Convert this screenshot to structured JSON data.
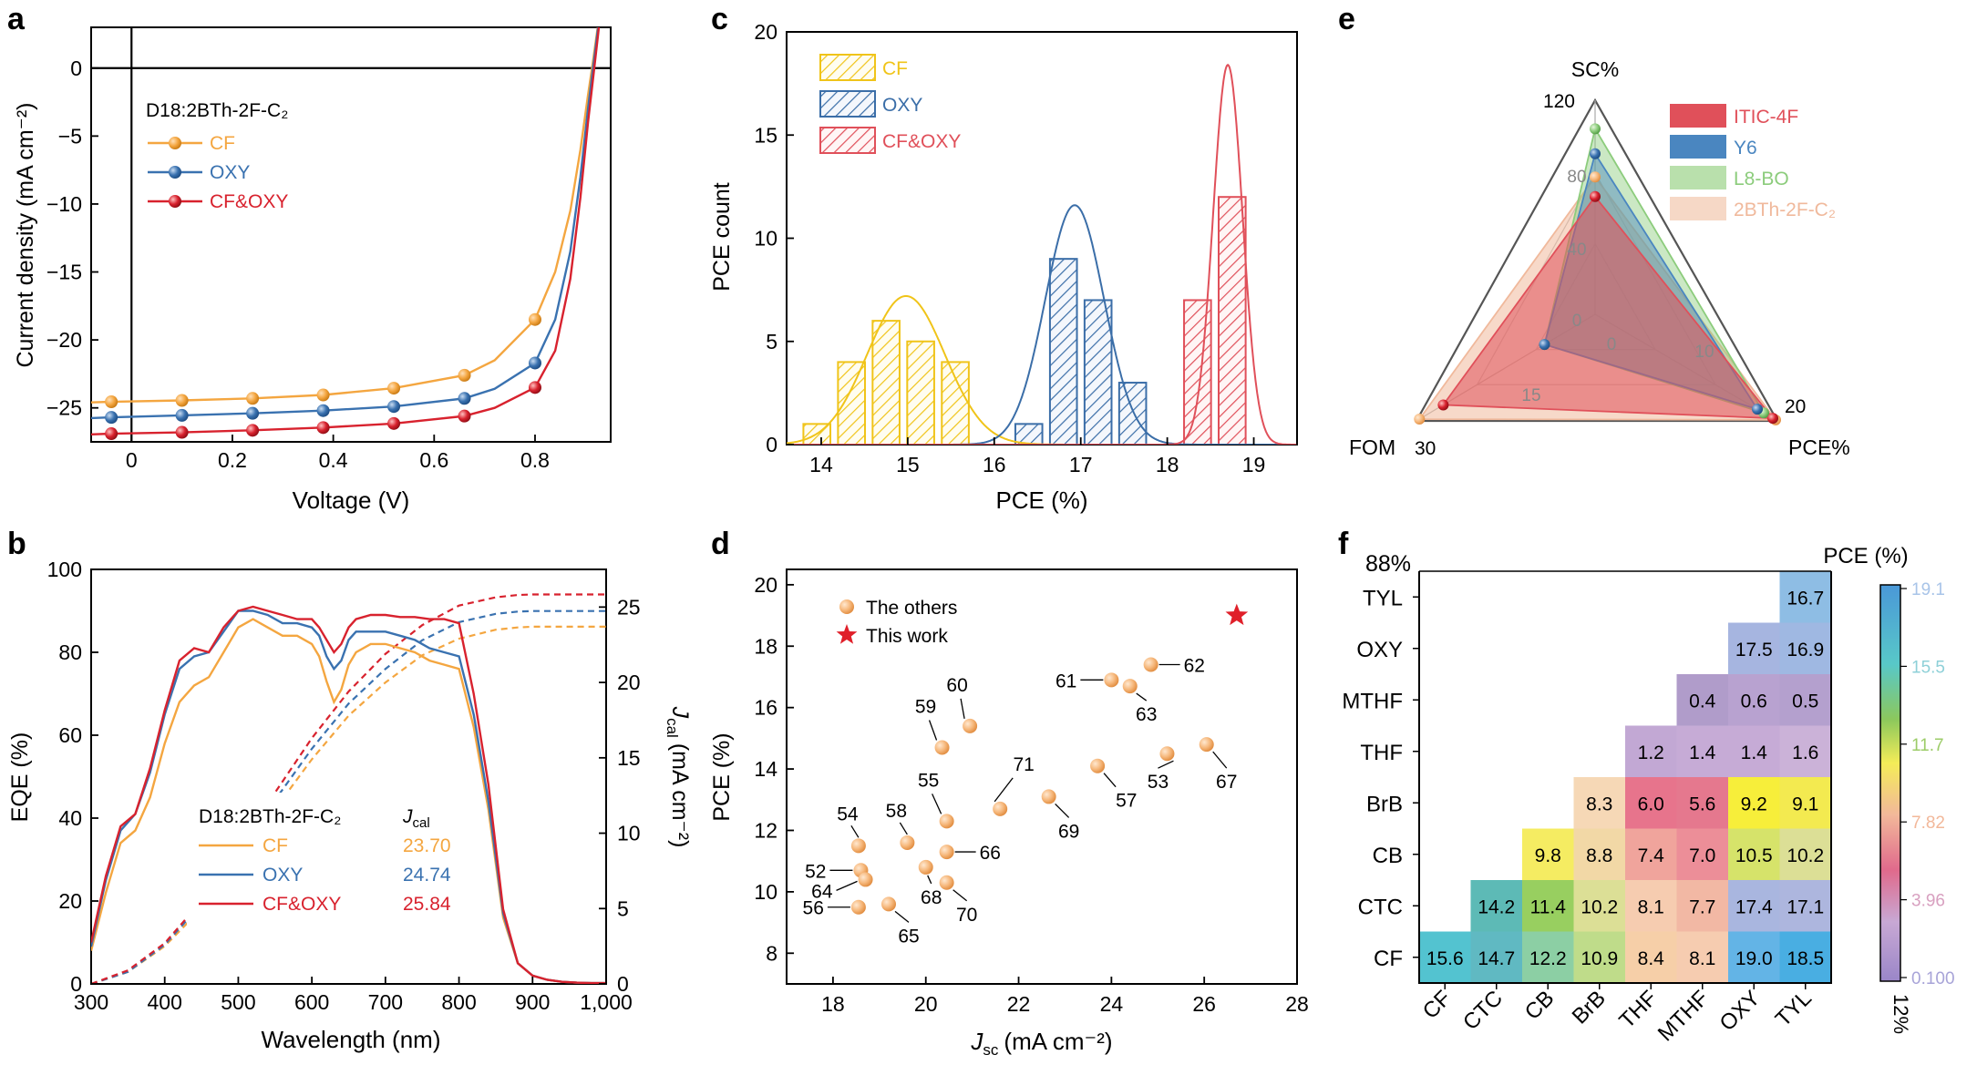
{
  "colors": {
    "cf": "#f4a640",
    "oxy": "#3a72b0",
    "cfoxy": "#d8222e",
    "hist_cf": "#f0c419",
    "hist_oxy": "#3b6ea8",
    "hist_cfoxy": "#e0505a",
    "others": "#f6b87c",
    "star": "#e0202a",
    "itic": "#e0505a",
    "y6": "#4a86c0",
    "l8bo": "#8ccc7c",
    "bth": "#f0b99c"
  },
  "panels": {
    "a": "a",
    "b": "b",
    "c": "c",
    "d": "d",
    "e": "e",
    "f": "f"
  },
  "chart_data": [
    {
      "panel": "a",
      "type": "line",
      "title": "D18:2BTh-2F-C₂",
      "xlabel": "Voltage (V)",
      "ylabel": "Current density (mA cm⁻²)",
      "xlim": [
        -0.08,
        0.95
      ],
      "ylim": [
        -27.5,
        3
      ],
      "xticks": [
        0,
        0.2,
        0.4,
        0.6,
        0.8
      ],
      "xtick_labels": [
        "0",
        "0.2",
        "0.4",
        "0.6",
        "0.8"
      ],
      "yticks": [
        0,
        -5,
        -10,
        -15,
        -20,
        -25
      ],
      "ytick_labels": [
        "0",
        "−5",
        "−10",
        "−15",
        "−20",
        "−25"
      ],
      "legend": "top-left",
      "series": [
        {
          "name": "CF",
          "color": "#f4a640",
          "x": [
            -0.08,
            -0.04,
            0.1,
            0.24,
            0.38,
            0.52,
            0.66,
            0.72,
            0.8,
            0.84,
            0.87,
            0.89,
            0.905,
            0.915,
            0.925,
            0.93
          ],
          "y": [
            -24.6,
            -24.55,
            -24.45,
            -24.3,
            -24.05,
            -23.55,
            -22.6,
            -21.5,
            -18.5,
            -15,
            -10.5,
            -6,
            -2,
            0.5,
            3.2,
            4.2
          ],
          "markers_x": [
            -0.04,
            0.1,
            0.24,
            0.38,
            0.52,
            0.66,
            0.8
          ]
        },
        {
          "name": "OXY",
          "color": "#3a72b0",
          "x": [
            -0.08,
            -0.04,
            0.1,
            0.24,
            0.38,
            0.52,
            0.66,
            0.72,
            0.8,
            0.84,
            0.87,
            0.89,
            0.905,
            0.915,
            0.925,
            0.93
          ],
          "y": [
            -25.75,
            -25.7,
            -25.55,
            -25.4,
            -25.2,
            -24.9,
            -24.3,
            -23.6,
            -21.7,
            -18.5,
            -13.5,
            -8,
            -3,
            0,
            3,
            4.2
          ],
          "markers_x": [
            -0.04,
            0.1,
            0.24,
            0.38,
            0.52,
            0.66,
            0.8
          ]
        },
        {
          "name": "CF&OXY",
          "color": "#d8222e",
          "x": [
            -0.08,
            -0.04,
            0.1,
            0.24,
            0.38,
            0.52,
            0.66,
            0.72,
            0.8,
            0.84,
            0.87,
            0.89,
            0.905,
            0.915,
            0.925,
            0.93
          ],
          "y": [
            -26.95,
            -26.9,
            -26.8,
            -26.65,
            -26.45,
            -26.15,
            -25.6,
            -25,
            -23.5,
            -20.8,
            -15.5,
            -9.5,
            -4,
            -0.8,
            2.5,
            4.2
          ],
          "markers_x": [
            -0.04,
            0.1,
            0.24,
            0.38,
            0.52,
            0.66,
            0.8
          ]
        }
      ]
    },
    {
      "panel": "b",
      "type": "line",
      "title": "D18:2BTh-2F-C₂",
      "xlabel": "Wavelength (nm)",
      "ylabel": "EQE (%)",
      "y2label": "J",
      "y2label_sub": "cal",
      "y2label_unit": "(mA cm⁻²)",
      "xlim": [
        300,
        1000
      ],
      "ylim": [
        0,
        100
      ],
      "y2lim": [
        0,
        27.5
      ],
      "xticks": [
        300,
        400,
        500,
        600,
        700,
        800,
        900,
        1000
      ],
      "xtick_labels": [
        "300",
        "400",
        "500",
        "600",
        "700",
        "800",
        "900",
        "1,000"
      ],
      "yticks": [
        0,
        20,
        40,
        60,
        80,
        100
      ],
      "y2ticks": [
        0,
        5,
        10,
        15,
        20,
        25
      ],
      "legend": "center-left",
      "legend_jcal_label": "J",
      "legend_jcal_sub": "cal",
      "series": [
        {
          "name": "CF",
          "color": "#f4a640",
          "jcal": "23.70",
          "x": [
            300,
            320,
            340,
            360,
            380,
            400,
            420,
            440,
            460,
            480,
            500,
            520,
            540,
            560,
            580,
            600,
            610,
            620,
            630,
            640,
            650,
            660,
            680,
            700,
            720,
            740,
            760,
            780,
            800,
            820,
            840,
            860,
            880,
            900,
            920,
            940,
            960,
            980,
            1000
          ],
          "y": [
            8,
            22,
            34,
            37,
            45,
            58,
            68,
            72,
            74,
            80,
            86,
            88,
            86,
            84,
            84,
            82,
            79,
            73,
            68,
            71,
            77,
            80,
            82,
            82,
            81,
            80,
            78,
            77,
            76,
            62,
            42,
            16,
            5,
            2,
            1,
            0.5,
            0.3,
            0.2,
            0.2
          ],
          "jcal_x": [
            300,
            350,
            400,
            450,
            500,
            550,
            600,
            650,
            700,
            750,
            800,
            850,
            880,
            900,
            950,
            1000
          ],
          "jcal_y": [
            0,
            0.8,
            2.5,
            5,
            8.3,
            11.6,
            14.9,
            17.8,
            20,
            21.8,
            22.9,
            23.5,
            23.65,
            23.7,
            23.7,
            23.7
          ]
        },
        {
          "name": "OXY",
          "color": "#3a72b0",
          "jcal": "24.74",
          "x": [
            300,
            320,
            340,
            360,
            380,
            400,
            420,
            440,
            460,
            480,
            500,
            520,
            540,
            560,
            580,
            600,
            610,
            620,
            630,
            640,
            650,
            660,
            680,
            700,
            720,
            740,
            760,
            780,
            800,
            820,
            840,
            860,
            880,
            900,
            920,
            940,
            960,
            980,
            1000
          ],
          "y": [
            9,
            25,
            37,
            41,
            51,
            65,
            76,
            79,
            80,
            85,
            90,
            90,
            89,
            87,
            87,
            86,
            84,
            79,
            76,
            78,
            83,
            85,
            85,
            85,
            84,
            83,
            81,
            80,
            79,
            65,
            44,
            17,
            5,
            2,
            1,
            0.5,
            0.3,
            0.2,
            0.2
          ],
          "jcal_x": [
            300,
            350,
            400,
            450,
            500,
            550,
            600,
            650,
            700,
            750,
            800,
            850,
            880,
            900,
            950,
            1000
          ],
          "jcal_y": [
            0,
            0.8,
            2.6,
            5.3,
            8.7,
            12.2,
            15.6,
            18.6,
            20.9,
            22.8,
            24,
            24.55,
            24.7,
            24.74,
            24.74,
            24.74
          ]
        },
        {
          "name": "CF&OXY",
          "color": "#d8222e",
          "jcal": "25.84",
          "x": [
            300,
            320,
            340,
            360,
            380,
            400,
            420,
            440,
            460,
            480,
            500,
            520,
            540,
            560,
            580,
            600,
            610,
            620,
            630,
            640,
            650,
            660,
            680,
            700,
            720,
            740,
            760,
            780,
            800,
            820,
            840,
            860,
            880,
            900,
            920,
            940,
            960,
            980,
            1000
          ],
          "y": [
            10,
            26,
            38,
            41,
            52,
            66,
            78,
            81,
            80,
            86,
            90,
            91,
            90,
            89,
            88,
            88,
            86,
            83,
            80,
            82,
            86,
            88,
            89,
            89,
            88.5,
            88.5,
            88,
            88,
            87,
            70,
            48,
            18,
            5,
            2,
            1,
            0.5,
            0.3,
            0.2,
            0.2
          ],
          "jcal_x": [
            300,
            350,
            400,
            450,
            500,
            550,
            600,
            650,
            700,
            750,
            800,
            850,
            880,
            900,
            950,
            1000
          ],
          "jcal_y": [
            0,
            0.9,
            2.7,
            5.5,
            9,
            12.7,
            16.3,
            19.4,
            21.9,
            23.8,
            25.1,
            25.65,
            25.8,
            25.84,
            25.84,
            25.84
          ]
        }
      ]
    },
    {
      "panel": "c",
      "type": "bar",
      "xlabel": "PCE (%)",
      "ylabel": "PCE count",
      "xlim": [
        13.6,
        19.5
      ],
      "ylim": [
        0,
        20
      ],
      "xticks": [
        14,
        15,
        16,
        17,
        18,
        19
      ],
      "yticks": [
        0,
        5,
        10,
        15,
        20
      ],
      "legend": "top-left",
      "series": [
        {
          "name": "CF",
          "color": "#f0c419",
          "bin_centers": [
            13.95,
            14.35,
            14.75,
            15.15,
            15.55
          ],
          "counts": [
            1,
            4,
            6,
            5,
            4
          ],
          "fit_mu": 14.98,
          "fit_sigma": 0.45,
          "fit_peak": 7.2
        },
        {
          "name": "OXY",
          "color": "#3b6ea8",
          "bin_centers": [
            16.4,
            16.8,
            17.2,
            17.6
          ],
          "counts": [
            1,
            9,
            7,
            3
          ],
          "fit_mu": 16.93,
          "fit_sigma": 0.34,
          "fit_peak": 11.6
        },
        {
          "name": "CF&OXY",
          "color": "#e0505a",
          "bin_centers": [
            18.35,
            18.75
          ],
          "counts": [
            7,
            12
          ],
          "fit_mu": 18.7,
          "fit_sigma": 0.17,
          "fit_peak": 18.4
        }
      ]
    },
    {
      "panel": "d",
      "type": "scatter",
      "xlabel": "J",
      "xlabel_sub": "sc",
      "xlabel_unit": "(mA cm⁻²)",
      "ylabel": "PCE (%)",
      "xlim": [
        17,
        28
      ],
      "ylim": [
        7,
        20.5
      ],
      "xticks": [
        18,
        20,
        22,
        24,
        26,
        28
      ],
      "yticks": [
        8,
        10,
        12,
        14,
        16,
        18,
        20
      ],
      "legend": "top-left",
      "legend_labels": {
        "others": "The others",
        "this": "This work"
      },
      "this_work": {
        "x": 26.7,
        "y": 19.0
      },
      "points": [
        {
          "label": "52",
          "x": 18.6,
          "y": 10.7
        },
        {
          "label": "53",
          "x": 25.2,
          "y": 14.5
        },
        {
          "label": "54",
          "x": 18.55,
          "y": 11.5
        },
        {
          "label": "55",
          "x": 20.45,
          "y": 12.3
        },
        {
          "label": "56",
          "x": 18.55,
          "y": 9.5
        },
        {
          "label": "57",
          "x": 23.7,
          "y": 14.1
        },
        {
          "label": "58",
          "x": 19.6,
          "y": 11.6
        },
        {
          "label": "59",
          "x": 20.35,
          "y": 14.7
        },
        {
          "label": "60",
          "x": 20.95,
          "y": 15.4
        },
        {
          "label": "61",
          "x": 24.0,
          "y": 16.9
        },
        {
          "label": "62",
          "x": 24.85,
          "y": 17.4
        },
        {
          "label": "63",
          "x": 24.4,
          "y": 16.7
        },
        {
          "label": "64",
          "x": 18.7,
          "y": 10.4
        },
        {
          "label": "65",
          "x": 19.2,
          "y": 9.6
        },
        {
          "label": "66",
          "x": 20.45,
          "y": 11.3
        },
        {
          "label": "67",
          "x": 26.05,
          "y": 14.8
        },
        {
          "label": "68",
          "x": 20.0,
          "y": 10.8
        },
        {
          "label": "69",
          "x": 22.65,
          "y": 13.1
        },
        {
          "label": "70",
          "x": 20.45,
          "y": 10.3
        },
        {
          "label": "71",
          "x": 21.6,
          "y": 12.7
        }
      ]
    },
    {
      "panel": "e",
      "type": "radar",
      "axes": [
        "SC%",
        "FOM",
        "PCE%"
      ],
      "axis_max_labels": [
        "120",
        "30",
        "20"
      ],
      "grid_labels": [
        "80",
        "40",
        "0",
        "0",
        "10",
        "15"
      ],
      "legend": "top-right",
      "series": [
        {
          "name": "ITIC-4F",
          "color": "#e0505a",
          "values": [
            66,
            25.5,
            19.5
          ]
        },
        {
          "name": "Y6",
          "color": "#4a86c0",
          "values": [
            90,
            8.5,
            17.8
          ]
        },
        {
          "name": "L8-BO",
          "color": "#8ccc7c",
          "values": [
            104,
            8.5,
            18.5
          ]
        },
        {
          "name": "2BTh-2F-C₂",
          "color": "#f0b99c",
          "values": [
            77,
            29.5,
            19.8
          ]
        }
      ]
    },
    {
      "panel": "f",
      "type": "heatmap",
      "corner_label": "88%",
      "colorbar_title": "PCE (%)",
      "colorbar_ticks": [
        "19.1",
        "15.5",
        "11.7",
        "7.82",
        "3.96",
        "0.100"
      ],
      "colorbar_bottom_label": "12%",
      "rows": [
        "TYL",
        "OXY",
        "MTHF",
        "THF",
        "BrB",
        "CB",
        "CTC",
        "CF"
      ],
      "cols": [
        "CF",
        "CTC",
        "CB",
        "BrB",
        "THF",
        "MTHF",
        "OXY",
        "TYL"
      ],
      "cells": [
        [
          "",
          "",
          "",
          "",
          "",
          "",
          "",
          "16.7"
        ],
        [
          "",
          "",
          "",
          "",
          "",
          "",
          "17.5",
          "16.9"
        ],
        [
          "",
          "",
          "",
          "",
          "",
          "0.4",
          "0.6",
          "0.5"
        ],
        [
          "",
          "",
          "",
          "",
          "1.2",
          "1.4",
          "1.4",
          "1.6"
        ],
        [
          "",
          "",
          "",
          "8.3",
          "6.0",
          "5.6",
          "9.2",
          "9.1"
        ],
        [
          "",
          "",
          "9.8",
          "8.8",
          "7.4",
          "7.0",
          "10.5",
          "10.2"
        ],
        [
          "",
          "14.2",
          "11.4",
          "10.2",
          "8.1",
          "7.7",
          "17.4",
          "17.1"
        ],
        [
          "15.6",
          "14.7",
          "12.2",
          "10.9",
          "8.4",
          "8.1",
          "19.0",
          "18.5"
        ]
      ]
    }
  ]
}
